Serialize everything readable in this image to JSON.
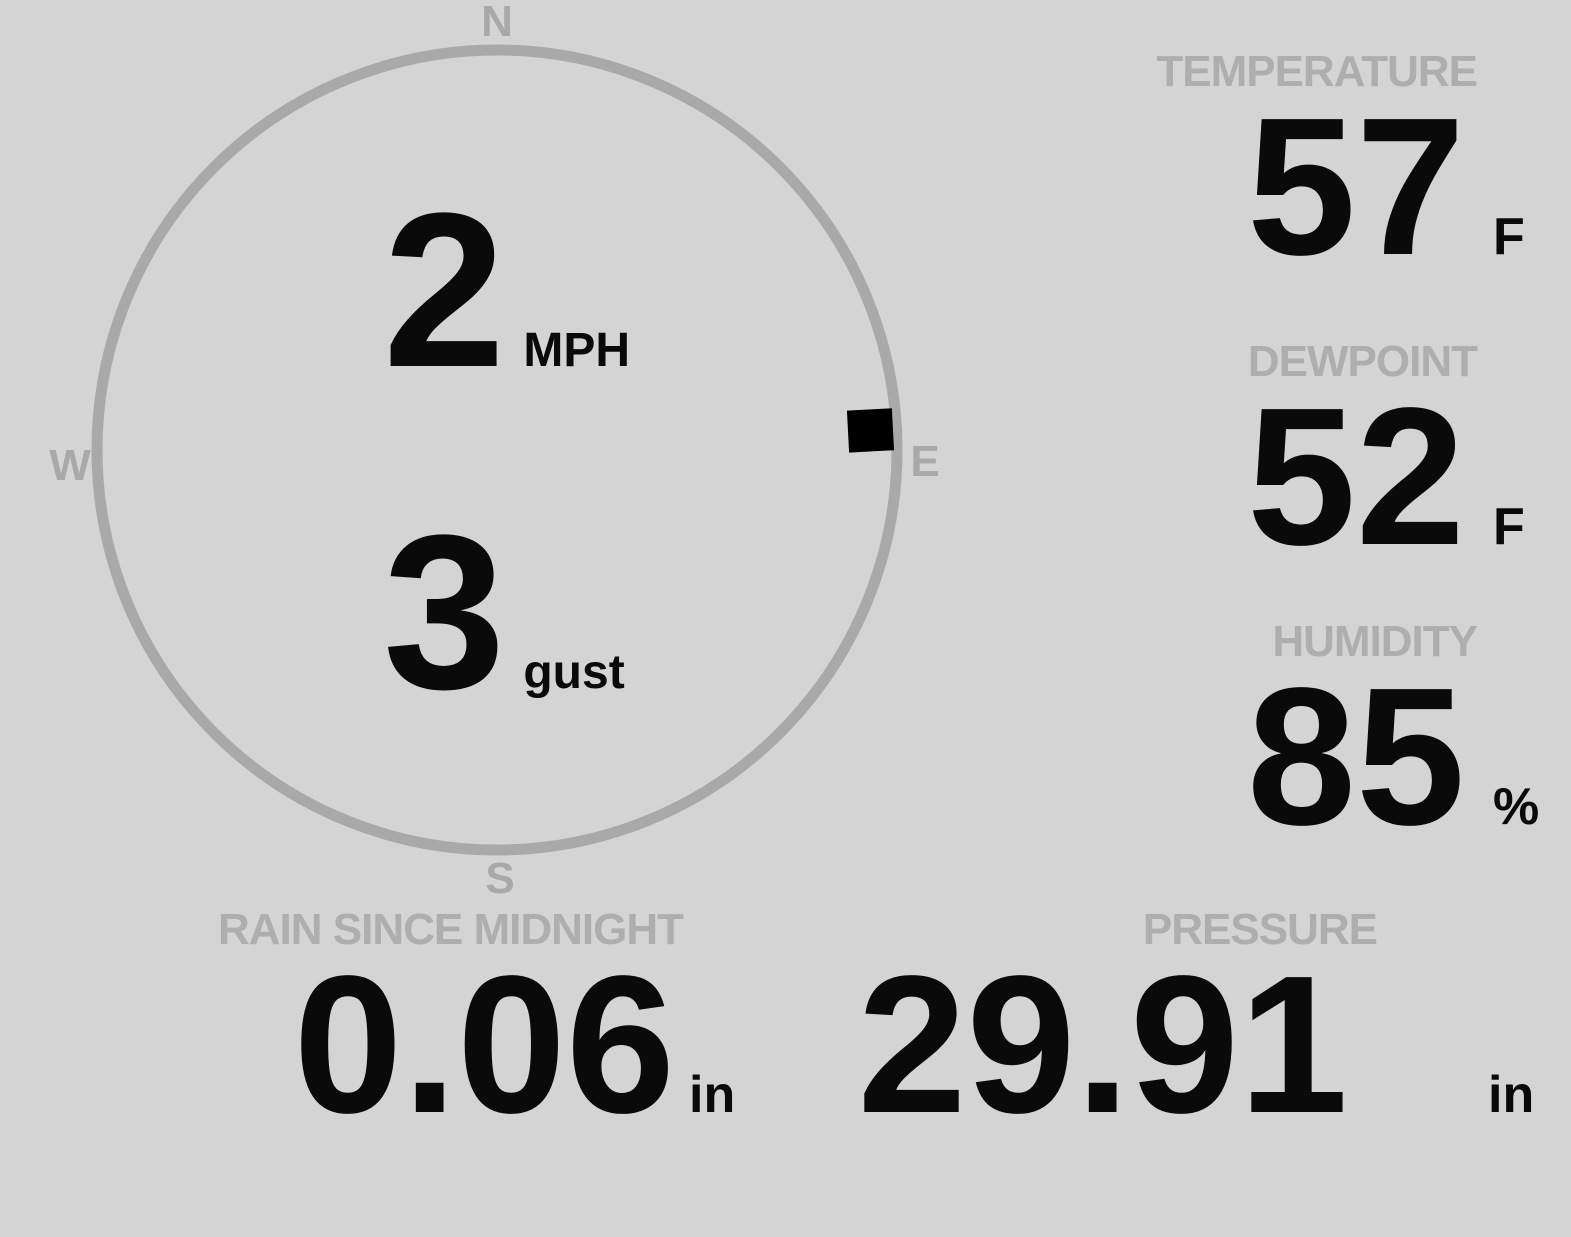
{
  "theme": {
    "background": "#d4d4d4",
    "compass_gray": "#a9a9a9",
    "label_gray": "#aeaeae",
    "text_black": "#0a0a0a",
    "marker_color": "#000000"
  },
  "compass": {
    "directions": {
      "north": "N",
      "east": "E",
      "south": "S",
      "west": "W"
    },
    "wind_speed": {
      "value": "2",
      "unit": "MPH"
    },
    "wind_gust": {
      "value": "3",
      "unit": "gust"
    },
    "wind_direction_deg": 87
  },
  "metrics": [
    {
      "id": "temperature",
      "label": "TEMPERATURE",
      "value": "57",
      "unit": "F"
    },
    {
      "id": "dewpoint",
      "label": "DEWPOINT",
      "value": "52",
      "unit": "F"
    },
    {
      "id": "humidity",
      "label": "HUMIDITY",
      "value": "85",
      "unit": "%"
    }
  ],
  "bottom_metrics": [
    {
      "id": "rain",
      "label": "RAIN SINCE MIDNIGHT",
      "value": "0.06",
      "unit": "in"
    },
    {
      "id": "pressure",
      "label": "PRESSURE",
      "value": "29.91",
      "unit": "in"
    }
  ]
}
